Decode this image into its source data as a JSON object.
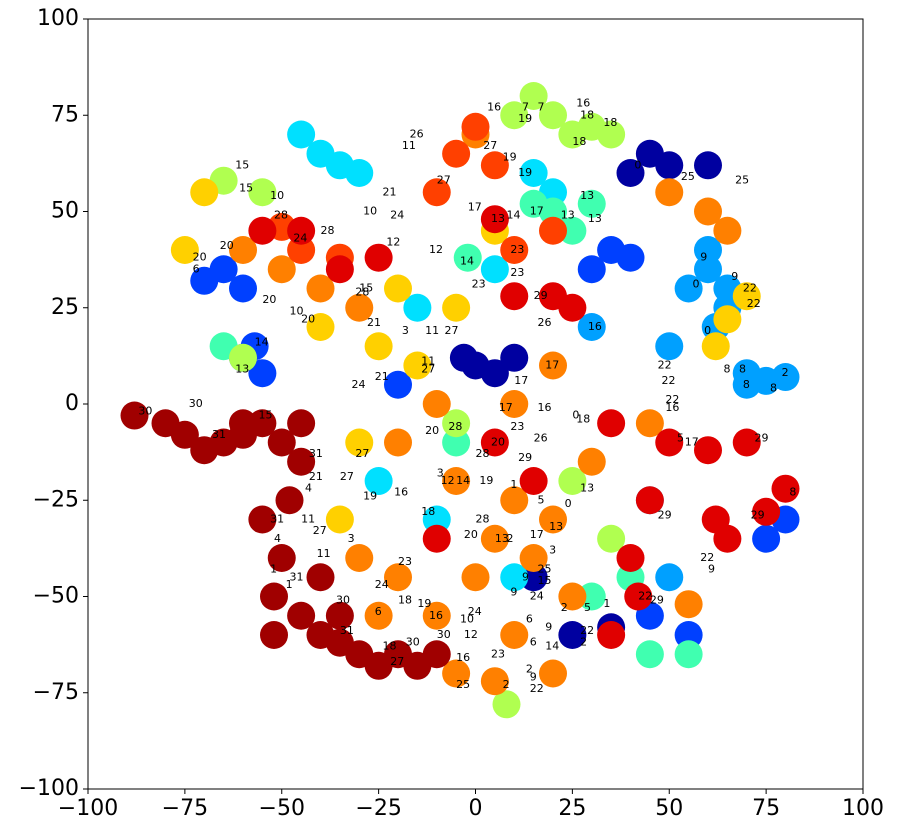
{
  "chart_data": {
    "type": "scatter",
    "xlim": [
      -100,
      100
    ],
    "ylim": [
      -100,
      100
    ],
    "xticks": [
      {
        "value": -100,
        "label": "−100"
      },
      {
        "value": -75,
        "label": "−75"
      },
      {
        "value": -50,
        "label": "−50"
      },
      {
        "value": -25,
        "label": "−25"
      },
      0,
      25,
      50,
      75,
      100
    ],
    "yticks": [
      {
        "value": -100,
        "label": "−100"
      },
      {
        "value": -75,
        "label": "−75"
      },
      {
        "value": -50,
        "label": "−50"
      },
      {
        "value": -25,
        "label": "−25"
      },
      0,
      25,
      50,
      75,
      100
    ],
    "series": [
      {
        "color": "#0000a0",
        "x": [
          0,
          10,
          5,
          45,
          40,
          50,
          25,
          15,
          35,
          -3,
          60
        ],
        "y": [
          10,
          12,
          8,
          65,
          60,
          62,
          -60,
          -45,
          -58,
          12,
          62
        ]
      },
      {
        "color": "#0040ff",
        "x": [
          -70,
          -60,
          -55,
          -65,
          -60,
          -57,
          30,
          40,
          35,
          75,
          80,
          45,
          55,
          -20
        ],
        "y": [
          32,
          30,
          8,
          35,
          12,
          15,
          35,
          38,
          40,
          -35,
          -30,
          -55,
          -60,
          5
        ]
      },
      {
        "color": "#00a0ff",
        "x": [
          60,
          65,
          62,
          70,
          80,
          55,
          60,
          45,
          50,
          75,
          70,
          30,
          65,
          50
        ],
        "y": [
          35,
          30,
          20,
          8,
          7,
          30,
          40,
          -25,
          -45,
          6,
          5,
          20,
          25,
          15
        ]
      },
      {
        "color": "#00e0ff",
        "x": [
          -45,
          -40,
          -30,
          -35,
          15,
          20,
          -15,
          -10,
          10,
          -25,
          5
        ],
        "y": [
          70,
          65,
          60,
          62,
          60,
          55,
          25,
          -30,
          -45,
          -20,
          35
        ]
      },
      {
        "color": "#40ffb0",
        "x": [
          -65,
          20,
          30,
          15,
          25,
          -5,
          40,
          30,
          55,
          -2,
          45
        ],
        "y": [
          15,
          50,
          52,
          52,
          45,
          -10,
          -45,
          -50,
          -65,
          38,
          -65
        ]
      },
      {
        "color": "#b0ff50",
        "x": [
          -65,
          -55,
          -60,
          25,
          30,
          10,
          -5,
          25,
          35,
          35,
          15,
          20,
          8
        ],
        "y": [
          58,
          55,
          12,
          70,
          72,
          75,
          -5,
          -20,
          -35,
          70,
          80,
          75,
          -78
        ]
      },
      {
        "color": "#ffd000",
        "x": [
          -70,
          -75,
          -40,
          -25,
          -15,
          70,
          65,
          62,
          -30,
          -5,
          5,
          -20,
          -35
        ],
        "y": [
          55,
          40,
          20,
          15,
          10,
          28,
          22,
          15,
          -10,
          25,
          45,
          30,
          -30
        ]
      },
      {
        "color": "#ff8000",
        "x": [
          -60,
          -50,
          -40,
          -30,
          0,
          -10,
          -20,
          -5,
          10,
          20,
          0,
          10,
          -5,
          5,
          15,
          30,
          45,
          50,
          60,
          65,
          20,
          -30,
          -20,
          10,
          -10,
          5,
          25,
          -25,
          55,
          20
        ],
        "y": [
          40,
          35,
          30,
          25,
          70,
          0,
          -10,
          -20,
          -25,
          -30,
          -45,
          -60,
          -70,
          -72,
          -40,
          -15,
          -5,
          55,
          50,
          45,
          -70,
          -40,
          -45,
          0,
          -55,
          -35,
          -50,
          -55,
          -52,
          10
        ]
      },
      {
        "color": "#ff4000",
        "x": [
          -50,
          -10,
          -5,
          0,
          -45,
          -35,
          20,
          10,
          5
        ],
        "y": [
          46,
          55,
          65,
          72,
          40,
          38,
          45,
          40,
          62
        ]
      },
      {
        "color": "#e00000",
        "x": [
          -55,
          -45,
          -35,
          -25,
          5,
          10,
          20,
          25,
          35,
          50,
          60,
          70,
          62,
          75,
          42,
          40,
          5,
          -10,
          35,
          65,
          80,
          15,
          45
        ],
        "y": [
          45,
          45,
          35,
          38,
          48,
          28,
          28,
          25,
          -5,
          -10,
          -12,
          -10,
          -30,
          -28,
          -50,
          -40,
          -10,
          -35,
          -60,
          -35,
          -22,
          -20,
          -25
        ]
      },
      {
        "color": "#a00000",
        "x": [
          -88,
          -80,
          -75,
          -70,
          -65,
          -60,
          -55,
          -50,
          -45,
          -48,
          -50,
          -52,
          -45,
          -40,
          -35,
          -30,
          -25,
          -20,
          -15,
          -40,
          -55,
          -52,
          -45,
          -35,
          -10,
          -60
        ],
        "y": [
          -3,
          -5,
          -8,
          -12,
          -10,
          -8,
          -5,
          -10,
          -15,
          -25,
          -40,
          -50,
          -55,
          -60,
          -62,
          -65,
          -68,
          -65,
          -68,
          -45,
          -30,
          -60,
          -5,
          -55,
          -65,
          -5
        ]
      }
    ],
    "annotations": [
      {
        "text": "30",
        "x": -87,
        "y": -2
      },
      {
        "text": "31",
        "x": -68,
        "y": -8
      },
      {
        "text": "15",
        "x": -56,
        "y": -3
      },
      {
        "text": "30",
        "x": -74,
        "y": 0
      },
      {
        "text": "15",
        "x": -62,
        "y": 62
      },
      {
        "text": "15",
        "x": -61,
        "y": 56
      },
      {
        "text": "10",
        "x": -53,
        "y": 54
      },
      {
        "text": "28",
        "x": -52,
        "y": 49
      },
      {
        "text": "20",
        "x": -66,
        "y": 41
      },
      {
        "text": "20",
        "x": -73,
        "y": 38
      },
      {
        "text": "6",
        "x": -73,
        "y": 35
      },
      {
        "text": "20",
        "x": -55,
        "y": 27
      },
      {
        "text": "24",
        "x": -47,
        "y": 43
      },
      {
        "text": "28",
        "x": -40,
        "y": 45
      },
      {
        "text": "28",
        "x": -31,
        "y": 29
      },
      {
        "text": "15",
        "x": -30,
        "y": 30
      },
      {
        "text": "14",
        "x": -57,
        "y": 16
      },
      {
        "text": "13",
        "x": -62,
        "y": 9
      },
      {
        "text": "10",
        "x": -48,
        "y": 24
      },
      {
        "text": "20",
        "x": -45,
        "y": 22
      },
      {
        "text": "26",
        "x": -17,
        "y": 70
      },
      {
        "text": "11",
        "x": -19,
        "y": 67
      },
      {
        "text": "21",
        "x": -24,
        "y": 55
      },
      {
        "text": "27",
        "x": -10,
        "y": 58
      },
      {
        "text": "10",
        "x": -29,
        "y": 50
      },
      {
        "text": "24",
        "x": -22,
        "y": 49
      },
      {
        "text": "12",
        "x": -23,
        "y": 42
      },
      {
        "text": "12",
        "x": -12,
        "y": 40
      },
      {
        "text": "21",
        "x": -28,
        "y": 21
      },
      {
        "text": "3",
        "x": -19,
        "y": 19
      },
      {
        "text": "11",
        "x": -13,
        "y": 19
      },
      {
        "text": "27",
        "x": -8,
        "y": 19
      },
      {
        "text": "21",
        "x": -26,
        "y": 7
      },
      {
        "text": "11",
        "x": -14,
        "y": 11
      },
      {
        "text": "27",
        "x": -14,
        "y": 9
      },
      {
        "text": "24",
        "x": -32,
        "y": 5
      },
      {
        "text": "16",
        "x": 3,
        "y": 77
      },
      {
        "text": "7",
        "x": 12,
        "y": 77
      },
      {
        "text": "7",
        "x": 16,
        "y": 77
      },
      {
        "text": "19",
        "x": 11,
        "y": 74
      },
      {
        "text": "16",
        "x": 26,
        "y": 78
      },
      {
        "text": "18",
        "x": 27,
        "y": 75
      },
      {
        "text": "18",
        "x": 33,
        "y": 73
      },
      {
        "text": "18",
        "x": 25,
        "y": 68
      },
      {
        "text": "27",
        "x": 2,
        "y": 67
      },
      {
        "text": "19",
        "x": 7,
        "y": 64
      },
      {
        "text": "19",
        "x": 11,
        "y": 60
      },
      {
        "text": "17",
        "x": -2,
        "y": 51
      },
      {
        "text": "13",
        "x": 4,
        "y": 48
      },
      {
        "text": "14",
        "x": 8,
        "y": 49
      },
      {
        "text": "17",
        "x": 14,
        "y": 50
      },
      {
        "text": "13",
        "x": 22,
        "y": 49
      },
      {
        "text": "13",
        "x": 27,
        "y": 54
      },
      {
        "text": "13",
        "x": 29,
        "y": 48
      },
      {
        "text": "23",
        "x": 9,
        "y": 40
      },
      {
        "text": "23",
        "x": 9,
        "y": 34
      },
      {
        "text": "14",
        "x": -4,
        "y": 37
      },
      {
        "text": "23",
        "x": -1,
        "y": 31
      },
      {
        "text": "29",
        "x": 15,
        "y": 28
      },
      {
        "text": "26",
        "x": 16,
        "y": 21
      },
      {
        "text": "16",
        "x": 29,
        "y": 20
      },
      {
        "text": "17",
        "x": 10,
        "y": 6
      },
      {
        "text": "17",
        "x": 18,
        "y": 10
      },
      {
        "text": "0",
        "x": 41,
        "y": 62
      },
      {
        "text": "25",
        "x": 53,
        "y": 59
      },
      {
        "text": "25",
        "x": 67,
        "y": 58
      },
      {
        "text": "9",
        "x": 58,
        "y": 38
      },
      {
        "text": "0",
        "x": 56,
        "y": 31
      },
      {
        "text": "9",
        "x": 66,
        "y": 33
      },
      {
        "text": "22",
        "x": 69,
        "y": 30
      },
      {
        "text": "22",
        "x": 70,
        "y": 26
      },
      {
        "text": "0",
        "x": 59,
        "y": 19
      },
      {
        "text": "8",
        "x": 64,
        "y": 9
      },
      {
        "text": "8",
        "x": 68,
        "y": 9
      },
      {
        "text": "8",
        "x": 69,
        "y": 5
      },
      {
        "text": "8",
        "x": 76,
        "y": 4
      },
      {
        "text": "2",
        "x": 79,
        "y": 8
      },
      {
        "text": "22",
        "x": 47,
        "y": 10
      },
      {
        "text": "22",
        "x": 48,
        "y": 6
      },
      {
        "text": "22",
        "x": 49,
        "y": 1
      },
      {
        "text": "16",
        "x": 49,
        "y": -1
      },
      {
        "text": "0",
        "x": 25,
        "y": -3
      },
      {
        "text": "18",
        "x": 26,
        "y": -4
      },
      {
        "text": "17",
        "x": 6,
        "y": -1
      },
      {
        "text": "16",
        "x": 16,
        "y": -1
      },
      {
        "text": "23",
        "x": 9,
        "y": -6
      },
      {
        "text": "26",
        "x": 15,
        "y": -9
      },
      {
        "text": "5",
        "x": 52,
        "y": -9
      },
      {
        "text": "17",
        "x": 54,
        "y": -10
      },
      {
        "text": "29",
        "x": 72,
        "y": -9
      },
      {
        "text": "29",
        "x": 47,
        "y": -29
      },
      {
        "text": "29",
        "x": 71,
        "y": -29
      },
      {
        "text": "22",
        "x": 58,
        "y": -40
      },
      {
        "text": "9",
        "x": 60,
        "y": -43
      },
      {
        "text": "8",
        "x": 81,
        "y": -23
      },
      {
        "text": "13",
        "x": 27,
        "y": -22
      },
      {
        "text": "0",
        "x": 23,
        "y": -26
      },
      {
        "text": "5",
        "x": 16,
        "y": -25
      },
      {
        "text": "13",
        "x": 19,
        "y": -32
      },
      {
        "text": "1",
        "x": 9,
        "y": -21
      },
      {
        "text": "28",
        "x": 0,
        "y": -30
      },
      {
        "text": "20",
        "x": -3,
        "y": -34
      },
      {
        "text": "13",
        "x": 5,
        "y": -35
      },
      {
        "text": "2",
        "x": 8,
        "y": -35
      },
      {
        "text": "17",
        "x": 14,
        "y": -34
      },
      {
        "text": "3",
        "x": 19,
        "y": -38
      },
      {
        "text": "25",
        "x": 16,
        "y": -43
      },
      {
        "text": "9",
        "x": 12,
        "y": -45
      },
      {
        "text": "15",
        "x": 16,
        "y": -46
      },
      {
        "text": "9",
        "x": 9,
        "y": -49
      },
      {
        "text": "24",
        "x": 14,
        "y": -50
      },
      {
        "text": "2",
        "x": 22,
        "y": -53
      },
      {
        "text": "5",
        "x": 28,
        "y": -53
      },
      {
        "text": "1",
        "x": 33,
        "y": -52
      },
      {
        "text": "22",
        "x": 42,
        "y": -50
      },
      {
        "text": "29",
        "x": 45,
        "y": -51
      },
      {
        "text": "22",
        "x": 27,
        "y": -59
      },
      {
        "text": "2",
        "x": 27,
        "y": -62
      },
      {
        "text": "6",
        "x": 13,
        "y": -56
      },
      {
        "text": "9",
        "x": 18,
        "y": -58
      },
      {
        "text": "6",
        "x": 14,
        "y": -62
      },
      {
        "text": "14",
        "x": 18,
        "y": -63
      },
      {
        "text": "23",
        "x": 4,
        "y": -65
      },
      {
        "text": "2",
        "x": 13,
        "y": -69
      },
      {
        "text": "9",
        "x": 14,
        "y": -71
      },
      {
        "text": "22",
        "x": 14,
        "y": -74
      },
      {
        "text": "2",
        "x": 7,
        "y": -73
      },
      {
        "text": "25",
        "x": -5,
        "y": -73
      },
      {
        "text": "16",
        "x": -5,
        "y": -66
      },
      {
        "text": "12",
        "x": -3,
        "y": -60
      },
      {
        "text": "10",
        "x": -4,
        "y": -56
      },
      {
        "text": "24",
        "x": -2,
        "y": -54
      },
      {
        "text": "16",
        "x": -12,
        "y": -55
      },
      {
        "text": "30",
        "x": -10,
        "y": -60
      },
      {
        "text": "18",
        "x": -20,
        "y": -51
      },
      {
        "text": "19",
        "x": -15,
        "y": -52
      },
      {
        "text": "30",
        "x": -36,
        "y": -51
      },
      {
        "text": "6",
        "x": -26,
        "y": -54
      },
      {
        "text": "31",
        "x": -35,
        "y": -59
      },
      {
        "text": "30",
        "x": -18,
        "y": -62
      },
      {
        "text": "18",
        "x": -24,
        "y": -63
      },
      {
        "text": "27",
        "x": -22,
        "y": -67
      },
      {
        "text": "24",
        "x": -26,
        "y": -47
      },
      {
        "text": "23",
        "x": -20,
        "y": -41
      },
      {
        "text": "18",
        "x": -14,
        "y": -28
      },
      {
        "text": "16",
        "x": -21,
        "y": -23
      },
      {
        "text": "19",
        "x": -29,
        "y": -24
      },
      {
        "text": "27",
        "x": -35,
        "y": -19
      },
      {
        "text": "27",
        "x": -31,
        "y": -13
      },
      {
        "text": "31",
        "x": -43,
        "y": -13
      },
      {
        "text": "21",
        "x": -43,
        "y": -19
      },
      {
        "text": "4",
        "x": -44,
        "y": -22
      },
      {
        "text": "31",
        "x": -53,
        "y": -30
      },
      {
        "text": "11",
        "x": -45,
        "y": -30
      },
      {
        "text": "27",
        "x": -42,
        "y": -33
      },
      {
        "text": "4",
        "x": -52,
        "y": -35
      },
      {
        "text": "3",
        "x": -33,
        "y": -35
      },
      {
        "text": "11",
        "x": -41,
        "y": -39
      },
      {
        "text": "31",
        "x": -48,
        "y": -45
      },
      {
        "text": "1",
        "x": -53,
        "y": -43
      },
      {
        "text": "1",
        "x": -49,
        "y": -47
      },
      {
        "text": "28",
        "x": -7,
        "y": -6
      },
      {
        "text": "20",
        "x": -13,
        "y": -7
      },
      {
        "text": "20",
        "x": 4,
        "y": -10
      },
      {
        "text": "28",
        "x": 0,
        "y": -13
      },
      {
        "text": "29",
        "x": 11,
        "y": -14
      },
      {
        "text": "3",
        "x": -10,
        "y": -18
      },
      {
        "text": "12",
        "x": -9,
        "y": -20
      },
      {
        "text": "14",
        "x": -5,
        "y": -20
      },
      {
        "text": "19",
        "x": 1,
        "y": -20
      }
    ]
  }
}
